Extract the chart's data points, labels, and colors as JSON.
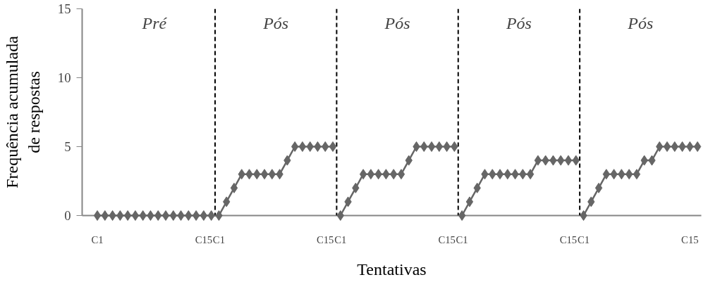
{
  "chart_data": {
    "type": "line",
    "xlabel": "Tentativas",
    "ylabel": "Frequência acumulada\nde respostas",
    "categories": [
      "C1",
      null,
      null,
      null,
      null,
      null,
      null,
      null,
      null,
      null,
      null,
      null,
      null,
      null,
      "C15",
      null,
      "C1",
      null,
      null,
      null,
      null,
      null,
      null,
      null,
      null,
      null,
      null,
      null,
      null,
      null,
      "C15",
      null,
      "C1",
      null,
      null,
      null,
      null,
      null,
      null,
      null,
      null,
      null,
      null,
      null,
      null,
      null,
      "C15",
      null,
      "C1",
      null,
      null,
      null,
      null,
      null,
      null,
      null,
      null,
      null,
      null,
      null,
      null,
      null,
      "C15",
      null,
      "C1",
      null,
      null,
      null,
      null,
      null,
      null,
      null,
      null,
      null,
      null,
      null,
      null,
      null,
      "C15",
      null
    ],
    "series": [
      {
        "color": "#666666",
        "values": [
          0,
          0,
          0,
          0,
          0,
          0,
          0,
          0,
          0,
          0,
          0,
          0,
          0,
          0,
          0,
          0,
          0,
          1,
          2,
          3,
          3,
          3,
          3,
          3,
          3,
          4,
          5,
          5,
          5,
          5,
          5,
          5,
          null,
          null,
          null,
          null,
          null,
          null,
          null,
          null,
          null,
          null,
          null,
          null,
          null,
          null,
          null,
          null,
          null,
          null,
          null,
          null,
          null,
          null,
          null,
          null,
          null,
          null,
          null,
          null,
          null,
          null,
          null,
          null,
          null,
          null,
          null,
          null,
          null,
          null,
          null,
          null,
          null,
          null,
          null,
          null,
          null,
          null,
          null,
          null
        ]
      },
      {
        "color": "#666666",
        "values": [
          null,
          null,
          null,
          null,
          null,
          null,
          null,
          null,
          null,
          null,
          null,
          null,
          null,
          null,
          null,
          null,
          null,
          null,
          null,
          null,
          null,
          null,
          null,
          null,
          null,
          null,
          null,
          null,
          null,
          null,
          null,
          null,
          0,
          1,
          2,
          3,
          3,
          3,
          3,
          3,
          3,
          4,
          5,
          5,
          5,
          5,
          5,
          5,
          null,
          null,
          null,
          null,
          null,
          null,
          null,
          null,
          null,
          null,
          null,
          null,
          null,
          null,
          null,
          null,
          null,
          null,
          null,
          null,
          null,
          null,
          null,
          null,
          null,
          null,
          null,
          null,
          null,
          null,
          null,
          null
        ]
      },
      {
        "color": "#666666",
        "values": [
          null,
          null,
          null,
          null,
          null,
          null,
          null,
          null,
          null,
          null,
          null,
          null,
          null,
          null,
          null,
          null,
          null,
          null,
          null,
          null,
          null,
          null,
          null,
          null,
          null,
          null,
          null,
          null,
          null,
          null,
          null,
          null,
          null,
          null,
          null,
          null,
          null,
          null,
          null,
          null,
          null,
          null,
          null,
          null,
          null,
          null,
          null,
          null,
          0,
          1,
          2,
          3,
          3,
          3,
          3,
          3,
          3,
          3,
          4,
          4,
          4,
          4,
          4,
          4,
          null,
          null,
          null,
          null,
          null,
          null,
          null,
          null,
          null,
          null,
          null,
          null,
          null,
          null,
          null,
          null
        ]
      },
      {
        "color": "#666666",
        "values": [
          null,
          null,
          null,
          null,
          null,
          null,
          null,
          null,
          null,
          null,
          null,
          null,
          null,
          null,
          null,
          null,
          null,
          null,
          null,
          null,
          null,
          null,
          null,
          null,
          null,
          null,
          null,
          null,
          null,
          null,
          null,
          null,
          null,
          null,
          null,
          null,
          null,
          null,
          null,
          null,
          null,
          null,
          null,
          null,
          null,
          null,
          null,
          null,
          null,
          null,
          null,
          null,
          null,
          null,
          null,
          null,
          null,
          null,
          null,
          null,
          null,
          null,
          null,
          null,
          0,
          1,
          2,
          3,
          3,
          3,
          3,
          3,
          4,
          4,
          5,
          5,
          5,
          5,
          5,
          5
        ]
      }
    ],
    "marker": "diamond",
    "line_style": "solid",
    "ylim": [
      0,
      15
    ],
    "yticks": [
      0,
      5,
      10,
      15
    ],
    "annotations": [
      "Pré",
      "Pós",
      "Pós",
      "Pós",
      "Pós"
    ]
  }
}
